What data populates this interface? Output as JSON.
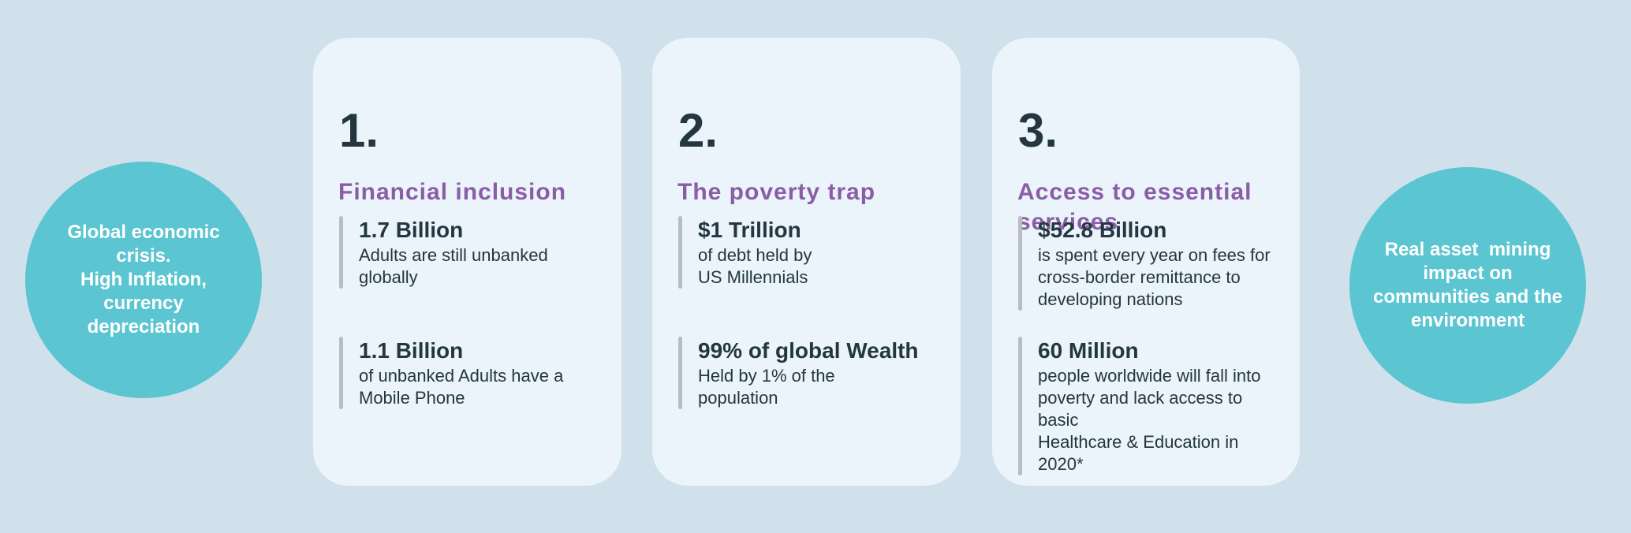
{
  "colors": {
    "bg": "#d1e1ec",
    "card": "#eaf4fa",
    "teal": "#5bc5d1",
    "purple": "#8a5da6",
    "dark": "#243640",
    "bar": "#b6bdc3",
    "circle-text": "#ffffff"
  },
  "left_circle": {
    "text": "Global economic\ncrisis.\nHigh Inflation,\ncurrency\ndepreciation"
  },
  "right_circle": {
    "text": "Real asset  mining\nimpact on\ncommunities and the\nenvironment"
  },
  "cards": [
    {
      "number": "1.",
      "heading": "Financial inclusion",
      "stats": [
        {
          "value": "1.7 Billion",
          "description": "Adults are still unbanked\nglobally"
        },
        {
          "value": "1.1 Billion",
          "description": "of unbanked Adults have a\nMobile Phone"
        }
      ]
    },
    {
      "number": "2.",
      "heading": "The poverty trap",
      "stats": [
        {
          "value": "$1 Trillion",
          "description": "of debt held by\nUS Millennials"
        },
        {
          "value": "99% of global Wealth",
          "description": "Held by 1% of the\npopulation"
        }
      ]
    },
    {
      "number": "3.",
      "heading": "Access to essential\nservices",
      "stats": [
        {
          "value": "$52.8 Billion",
          "description": "is spent every year on fees for\ncross-border remittance to\ndeveloping nations"
        },
        {
          "value": "60 Million",
          "description": "people worldwide will fall into\npoverty and lack access to basic\nHealthcare & Education in 2020*"
        }
      ]
    }
  ]
}
